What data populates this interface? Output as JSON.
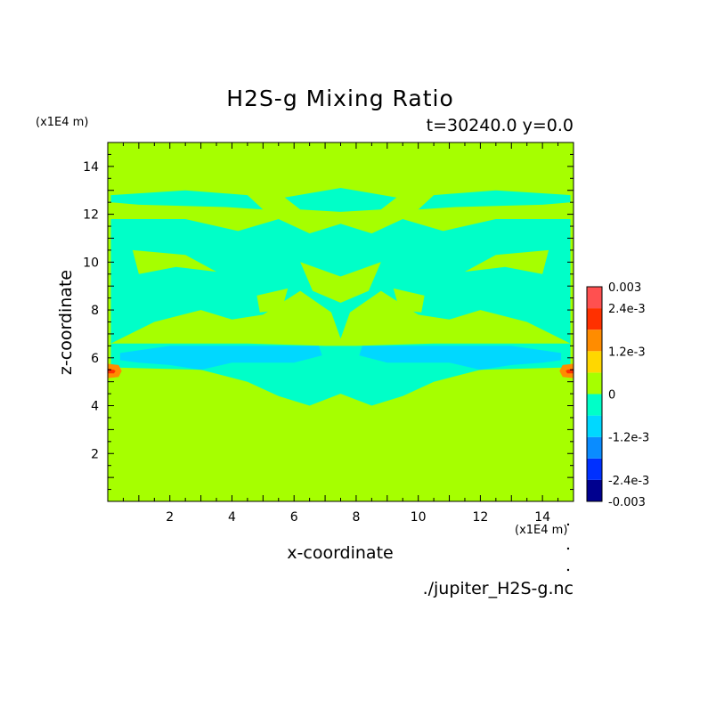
{
  "chart_data": {
    "type": "heatmap",
    "title": "H2S-g Mixing Ratio",
    "subtitle": "t=30240.0 y=0.0",
    "xlabel": "x-coordinate",
    "ylabel": "z-coordinate",
    "x_unit": "(x1E4 m)",
    "y_unit": "(x1E4 m)",
    "source_label": "./jupiter_H2S-g.nc",
    "xlim": [
      0.0,
      15.0
    ],
    "ylim": [
      0.0,
      15.0
    ],
    "x_ticks": [
      2,
      4,
      6,
      8,
      10,
      12,
      14
    ],
    "y_ticks": [
      2,
      4,
      6,
      8,
      10,
      12,
      14
    ],
    "colorbar": {
      "min": -0.003,
      "max": 0.003,
      "levels": [
        -0.003,
        -0.0024,
        -0.0018,
        -0.0012,
        -0.0006,
        0,
        0.0006,
        0.0012,
        0.0018,
        0.0024,
        0.003
      ],
      "colors": [
        "#00008f",
        "#0030ff",
        "#0a8cff",
        "#00d8ff",
        "#00ffc8",
        "#a6ff00",
        "#ffd700",
        "#ff8c00",
        "#ff3000",
        "#ff5050"
      ],
      "labels": [
        "0.003",
        "2.4e-3",
        "1.2e-3",
        "0",
        "-1.2e-3",
        "-2.4e-3",
        "-0.003"
      ]
    },
    "background_value": 0.0003,
    "regions": [
      {
        "value": -0.0003,
        "polygon": [
          [
            0.1,
            12.8
          ],
          [
            2.5,
            13.0
          ],
          [
            4.5,
            12.8
          ],
          [
            5.0,
            12.2
          ],
          [
            3.8,
            12.3
          ],
          [
            1.0,
            12.4
          ],
          [
            0.1,
            12.5
          ]
        ]
      },
      {
        "value": -0.0003,
        "polygon": [
          [
            14.9,
            12.8
          ],
          [
            12.5,
            13.0
          ],
          [
            10.5,
            12.8
          ],
          [
            10.0,
            12.2
          ],
          [
            11.2,
            12.3
          ],
          [
            14.0,
            12.4
          ],
          [
            14.9,
            12.5
          ]
        ]
      },
      {
        "value": -0.0003,
        "polygon": [
          [
            5.7,
            12.7
          ],
          [
            7.5,
            13.1
          ],
          [
            9.3,
            12.7
          ],
          [
            8.8,
            12.2
          ],
          [
            7.5,
            12.1
          ],
          [
            6.2,
            12.2
          ]
        ]
      },
      {
        "value": -0.0003,
        "polygon": [
          [
            0.1,
            11.8
          ],
          [
            2.5,
            11.8
          ],
          [
            4.2,
            11.3
          ],
          [
            5.5,
            11.8
          ],
          [
            6.5,
            11.2
          ],
          [
            7.5,
            11.6
          ],
          [
            8.5,
            11.2
          ],
          [
            9.5,
            11.8
          ],
          [
            10.8,
            11.3
          ],
          [
            12.5,
            11.8
          ],
          [
            14.9,
            11.8
          ],
          [
            14.9,
            6.6
          ],
          [
            13.5,
            7.5
          ],
          [
            12.0,
            8.0
          ],
          [
            11.0,
            7.6
          ],
          [
            10.0,
            7.8
          ],
          [
            8.8,
            8.8
          ],
          [
            7.8,
            7.9
          ],
          [
            7.5,
            6.8
          ],
          [
            7.2,
            7.9
          ],
          [
            6.2,
            8.8
          ],
          [
            5.0,
            7.8
          ],
          [
            4.0,
            7.6
          ],
          [
            3.0,
            8.0
          ],
          [
            1.5,
            7.5
          ],
          [
            0.1,
            6.6
          ]
        ]
      },
      {
        "value": -0.0003,
        "polygon": [
          [
            0.1,
            6.6
          ],
          [
            4.5,
            6.6
          ],
          [
            7.0,
            6.5
          ],
          [
            8.0,
            6.5
          ],
          [
            10.5,
            6.6
          ],
          [
            14.9,
            6.6
          ],
          [
            14.9,
            5.6
          ],
          [
            12.0,
            5.5
          ],
          [
            10.5,
            5.0
          ],
          [
            9.5,
            4.4
          ],
          [
            8.5,
            4.0
          ],
          [
            7.5,
            4.5
          ],
          [
            6.5,
            4.0
          ],
          [
            5.5,
            4.4
          ],
          [
            4.5,
            5.0
          ],
          [
            3.0,
            5.5
          ],
          [
            0.1,
            5.6
          ]
        ]
      },
      {
        "value": 0.0003,
        "polygon": [
          [
            0.8,
            10.5
          ],
          [
            2.5,
            10.3
          ],
          [
            3.5,
            9.6
          ],
          [
            2.2,
            9.8
          ],
          [
            1.0,
            9.5
          ]
        ]
      },
      {
        "value": 0.0003,
        "polygon": [
          [
            14.2,
            10.5
          ],
          [
            12.5,
            10.3
          ],
          [
            11.5,
            9.6
          ],
          [
            12.8,
            9.8
          ],
          [
            14.0,
            9.5
          ]
        ]
      },
      {
        "value": 0.0003,
        "polygon": [
          [
            6.2,
            10.0
          ],
          [
            7.5,
            9.4
          ],
          [
            8.8,
            10.0
          ],
          [
            8.4,
            8.8
          ],
          [
            7.5,
            8.3
          ],
          [
            6.6,
            8.8
          ]
        ]
      },
      {
        "value": 0.0003,
        "polygon": [
          [
            4.8,
            8.6
          ],
          [
            5.8,
            8.9
          ],
          [
            5.6,
            8.0
          ],
          [
            4.9,
            7.9
          ]
        ]
      },
      {
        "value": 0.0003,
        "polygon": [
          [
            10.2,
            8.6
          ],
          [
            9.2,
            8.9
          ],
          [
            9.4,
            8.0
          ],
          [
            10.1,
            7.9
          ]
        ]
      },
      {
        "value": -0.0009,
        "polygon": [
          [
            0.4,
            6.2
          ],
          [
            2.0,
            6.5
          ],
          [
            4.5,
            6.5
          ],
          [
            6.8,
            6.5
          ],
          [
            6.9,
            6.1
          ],
          [
            6.0,
            5.8
          ],
          [
            4.0,
            5.8
          ],
          [
            3.0,
            5.5
          ],
          [
            2.0,
            5.7
          ],
          [
            1.0,
            5.8
          ],
          [
            0.4,
            5.9
          ]
        ]
      },
      {
        "value": -0.0009,
        "polygon": [
          [
            14.6,
            6.2
          ],
          [
            13.0,
            6.5
          ],
          [
            10.5,
            6.5
          ],
          [
            8.2,
            6.5
          ],
          [
            8.1,
            6.1
          ],
          [
            9.0,
            5.8
          ],
          [
            11.0,
            5.8
          ],
          [
            12.0,
            5.5
          ],
          [
            13.0,
            5.7
          ],
          [
            14.0,
            5.8
          ],
          [
            14.6,
            5.9
          ]
        ]
      },
      {
        "value": 0.0015,
        "polygon": [
          [
            0.0,
            5.75
          ],
          [
            0.35,
            5.7
          ],
          [
            0.45,
            5.45
          ],
          [
            0.35,
            5.2
          ],
          [
            0.0,
            5.15
          ]
        ]
      },
      {
        "value": 0.0015,
        "polygon": [
          [
            15.0,
            5.75
          ],
          [
            14.65,
            5.7
          ],
          [
            14.55,
            5.45
          ],
          [
            14.65,
            5.2
          ],
          [
            15.0,
            5.15
          ]
        ]
      },
      {
        "value": 0.0021,
        "polygon": [
          [
            0.0,
            5.55
          ],
          [
            0.2,
            5.5
          ],
          [
            0.25,
            5.45
          ],
          [
            0.2,
            5.35
          ],
          [
            0.0,
            5.35
          ]
        ]
      },
      {
        "value": 0.0021,
        "polygon": [
          [
            15.0,
            5.55
          ],
          [
            14.8,
            5.5
          ],
          [
            14.75,
            5.45
          ],
          [
            14.8,
            5.35
          ],
          [
            15.0,
            5.35
          ]
        ]
      }
    ]
  }
}
